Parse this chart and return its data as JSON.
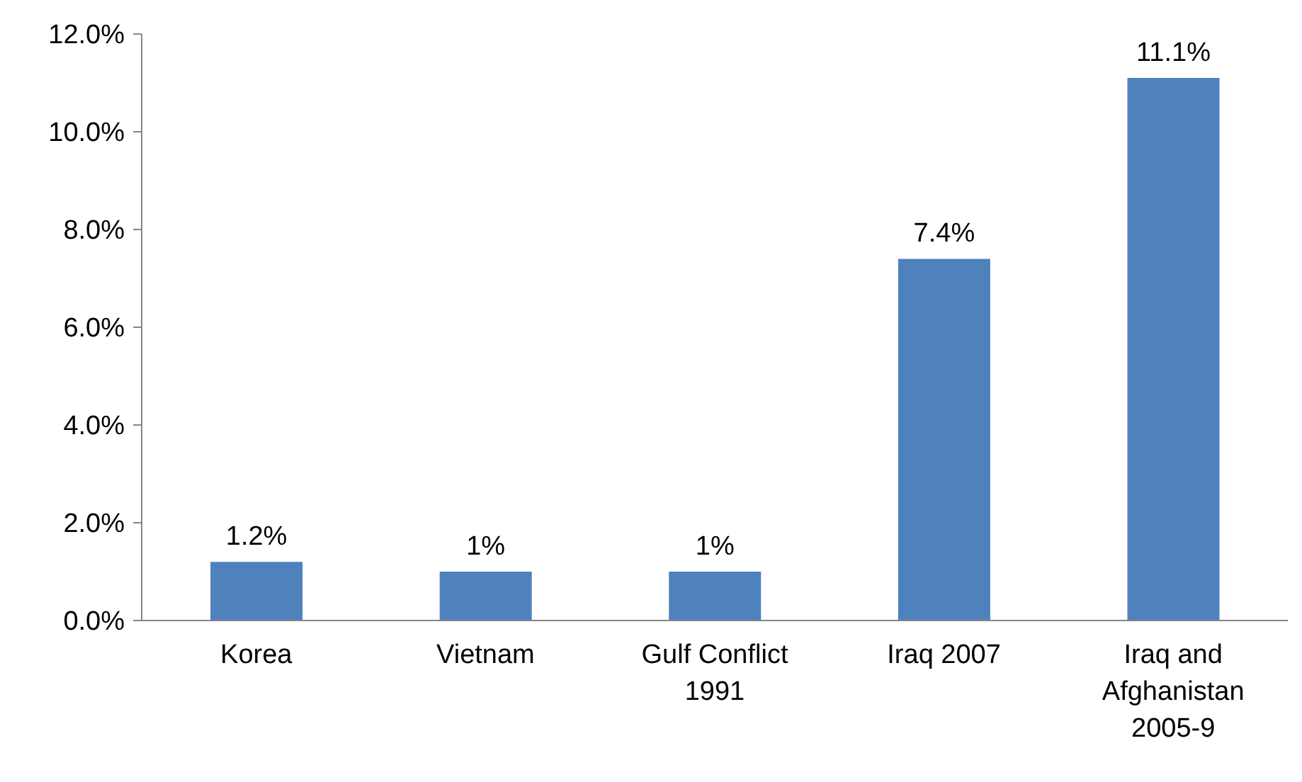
{
  "chart_data": {
    "type": "bar",
    "categories": [
      "Korea",
      "Vietnam",
      "Gulf Conflict 1991",
      "Iraq 2007",
      "Iraq and Afghanistan 2005-9"
    ],
    "values": [
      1.2,
      1,
      1,
      7.4,
      11.1
    ],
    "value_labels": [
      "1.2%",
      "1%",
      "1%",
      "7.4%",
      "11.1%"
    ],
    "color": "#4f81bd",
    "ylim": [
      0,
      12
    ],
    "yticks": [
      {
        "value": 0,
        "label": "0.0%"
      },
      {
        "value": 2,
        "label": "2.0%"
      },
      {
        "value": 4,
        "label": "4.0%"
      },
      {
        "value": 6,
        "label": "6.0%"
      },
      {
        "value": 8,
        "label": "8.0%"
      },
      {
        "value": 10,
        "label": "10.0%"
      },
      {
        "value": 12,
        "label": "12.0%"
      }
    ],
    "grid": false,
    "legend": false
  }
}
